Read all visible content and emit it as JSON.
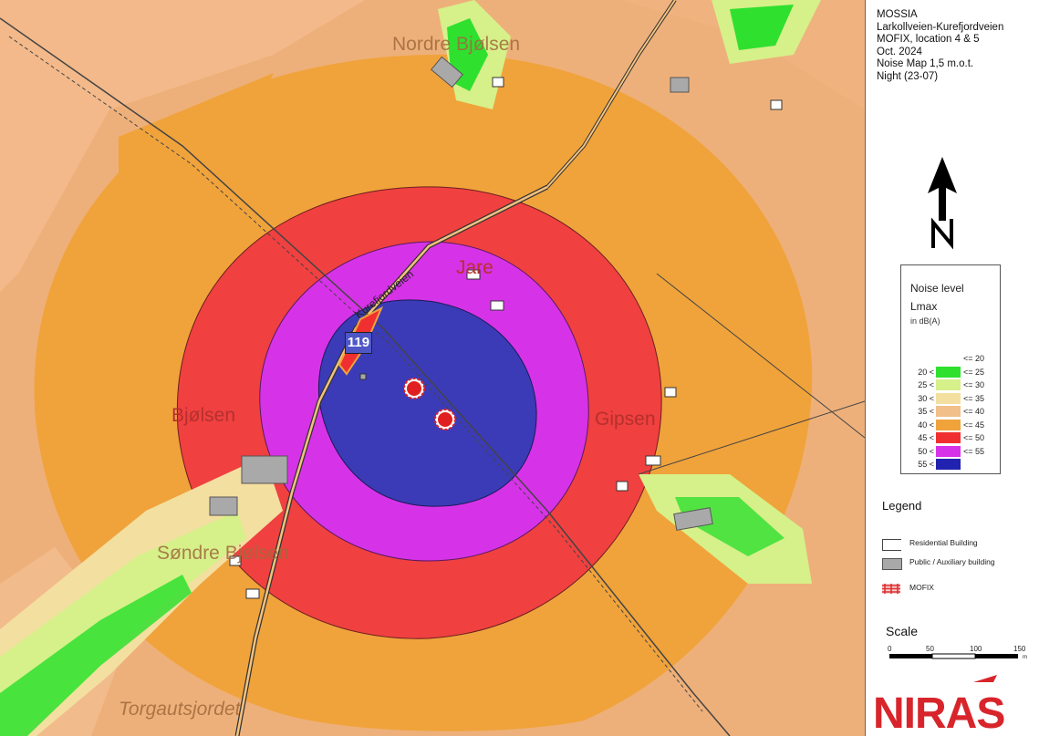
{
  "title_block": {
    "line1": "MOSSIA",
    "line2": "Larkollveien-Kurefjordveien",
    "line3": "MOFIX, location 4 & 5",
    "line4": "Oct. 2024",
    "line5": "Noise Map 1,5 m.o.t.",
    "line6": "Night (23-07)"
  },
  "north_arrow": {
    "letter": "N",
    "icon": "north-arrow-icon"
  },
  "noise_legend": {
    "title": "Noise level",
    "metric": "Lmax",
    "unit": "in dB(A)",
    "rows": [
      {
        "lo": "",
        "hi": "<= 20",
        "color": "#ffffff"
      },
      {
        "lo": "20 <",
        "hi": "<= 25",
        "color": "#2fe02f"
      },
      {
        "lo": "25 <",
        "hi": "<= 30",
        "color": "#d6f08a"
      },
      {
        "lo": "30 <",
        "hi": "<= 35",
        "color": "#f3dfa0"
      },
      {
        "lo": "35 <",
        "hi": "<= 40",
        "color": "#f0bf8a"
      },
      {
        "lo": "40 <",
        "hi": "<= 45",
        "color": "#f0a33b"
      },
      {
        "lo": "45 <",
        "hi": "<= 50",
        "color": "#f03030"
      },
      {
        "lo": "50 <",
        "hi": "<= 55",
        "color": "#d633e8"
      },
      {
        "lo": "55 <",
        "hi": "",
        "color": "#2222b0"
      }
    ]
  },
  "legend": {
    "title": "Legend",
    "items": [
      {
        "label": "Residential Building",
        "color": "#ffffff",
        "icon": "residential-building-icon"
      },
      {
        "label": "Public / Auxiliary building",
        "color": "#a9a9a9",
        "icon": "public-building-icon"
      },
      {
        "label": "MOFIX",
        "color": "#e03030",
        "icon": "mofix-source-icon"
      }
    ]
  },
  "scale": {
    "title": "Scale",
    "ticks": [
      "0",
      "50",
      "100",
      "150"
    ],
    "unit": "m"
  },
  "logo": {
    "text": "NIRAS",
    "color": "#d8252b"
  },
  "map": {
    "place_names": {
      "bjolsen": "Bjølsen",
      "gipsen": "Gipsen",
      "sondre_bjolsen": "Søndre Bjølsen",
      "nordre_bjolsen": "Nordre Bjølsen",
      "jare": "Jare",
      "torgautsjordet": "Torgautsjordet"
    },
    "road_name": "Kurefjordveien",
    "route_number": "119"
  }
}
